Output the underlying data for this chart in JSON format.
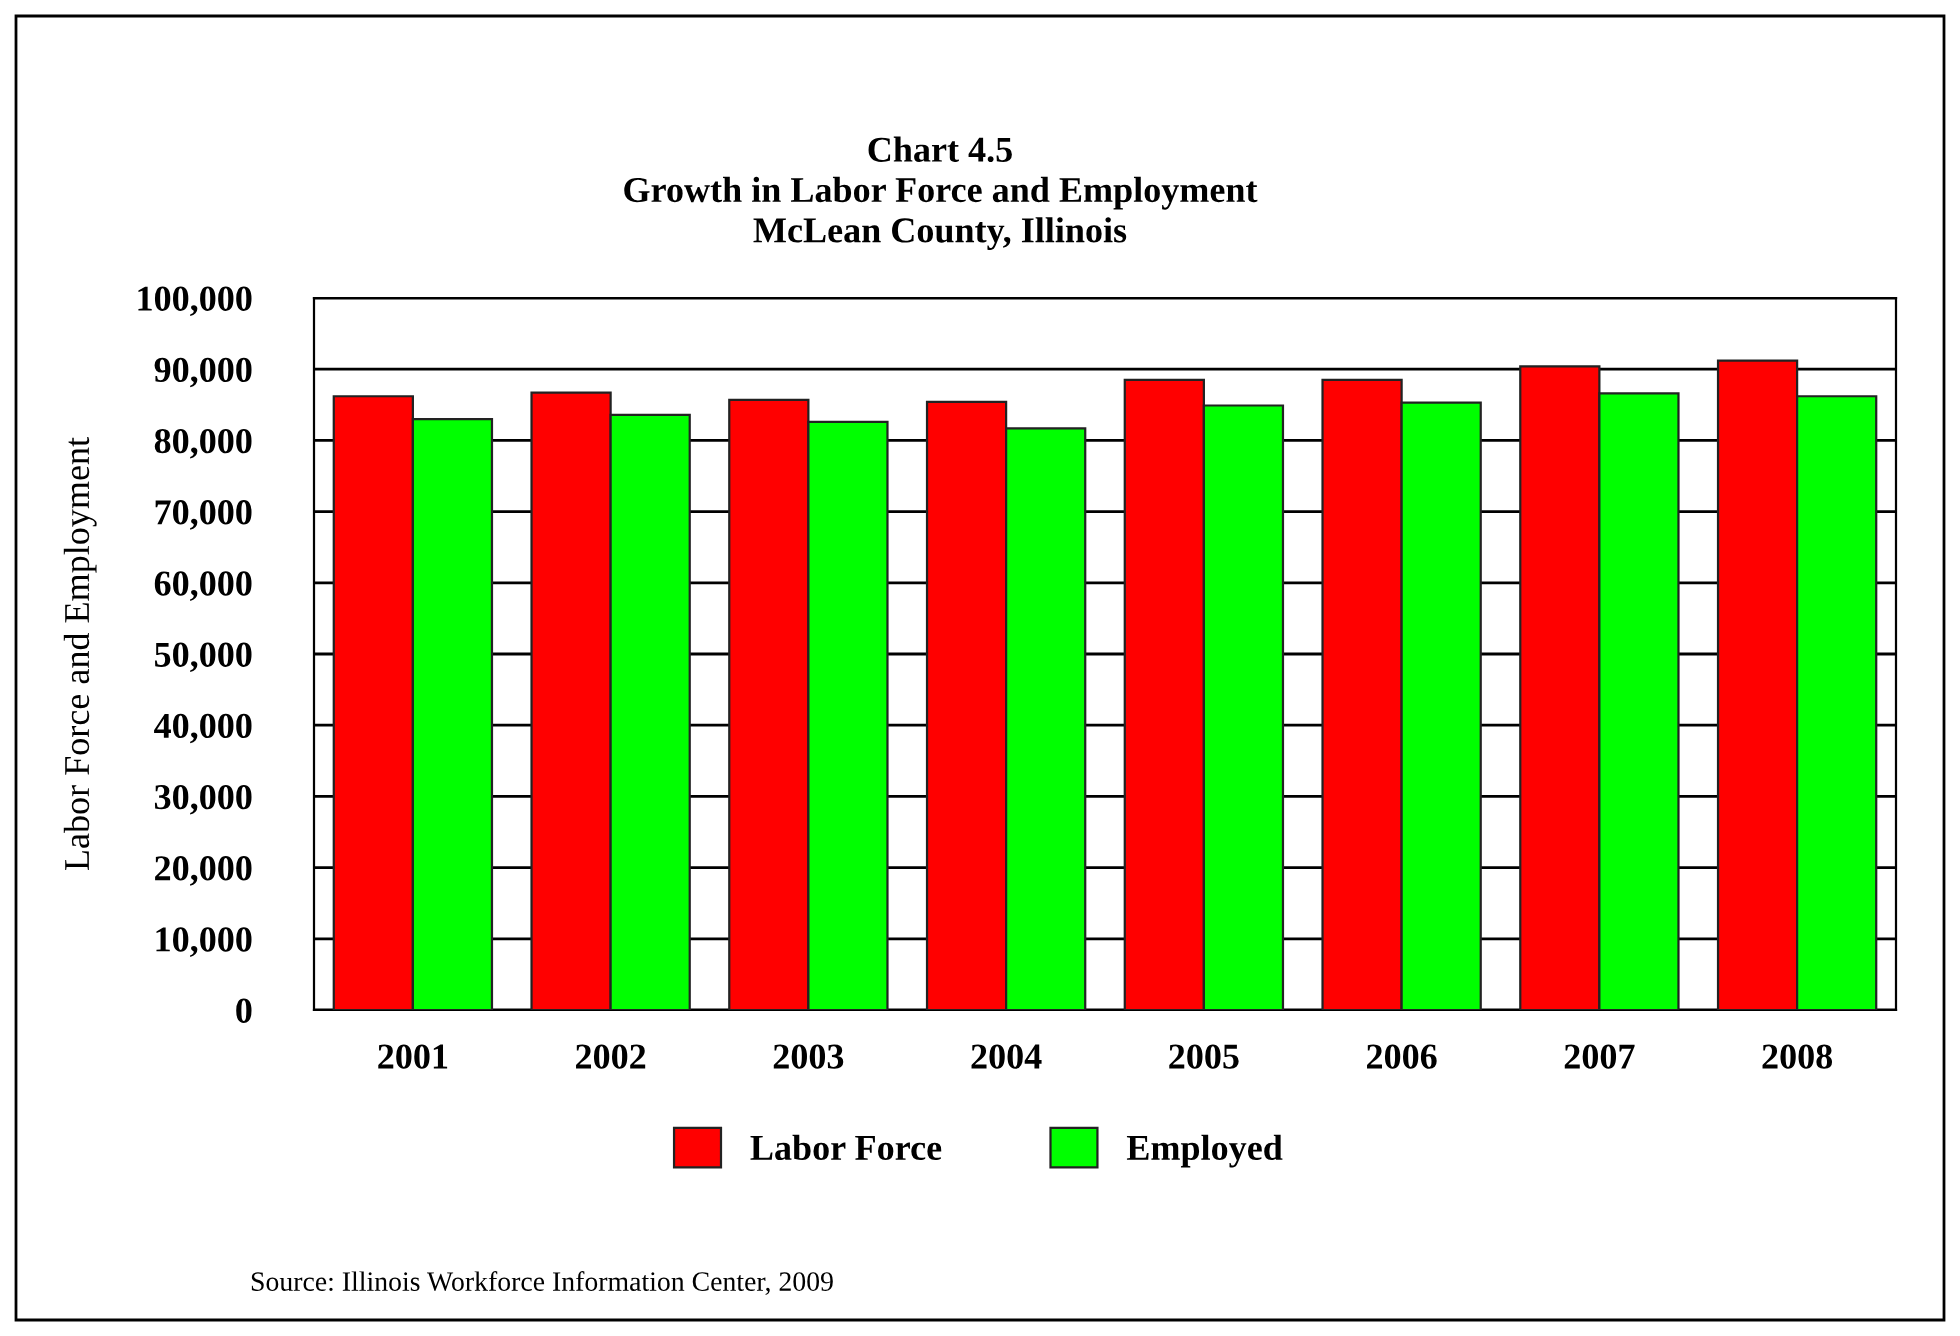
{
  "chart_data": {
    "type": "bar",
    "title": "Chart 4.5\nGrowth in Labor Force and Employment\nMcLean County, Illinois",
    "ylabel": "Labor Force and Employment",
    "categories": [
      "2001",
      "2002",
      "2003",
      "2004",
      "2005",
      "2006",
      "2007",
      "2008"
    ],
    "series": [
      {
        "name": "Labor Force",
        "color": "#ff0000",
        "values": [
          86200,
          86700,
          85700,
          85400,
          88500,
          88500,
          90400,
          91200
        ]
      },
      {
        "name": "Employed",
        "color": "#00ff00",
        "values": [
          83000,
          83600,
          82600,
          81700,
          84900,
          85300,
          86600,
          86200
        ]
      }
    ],
    "ylim": [
      0,
      100000
    ],
    "yticks": [
      {
        "value": 0,
        "label": "0"
      },
      {
        "value": 10000,
        "label": "10,000"
      },
      {
        "value": 20000,
        "label": "20,000"
      },
      {
        "value": 30000,
        "label": "30,000"
      },
      {
        "value": 40000,
        "label": "40,000"
      },
      {
        "value": 50000,
        "label": "50,000"
      },
      {
        "value": 60000,
        "label": "60,000"
      },
      {
        "value": 70000,
        "label": "70,000"
      },
      {
        "value": 80000,
        "label": "80,000"
      },
      {
        "value": 90000,
        "label": "90,000"
      },
      {
        "value": 100000,
        "label": "100,000"
      }
    ],
    "grid": "y",
    "legend": "bottom",
    "annotations": [
      "Source: Illinois Workforce Information Center, 2009"
    ]
  }
}
